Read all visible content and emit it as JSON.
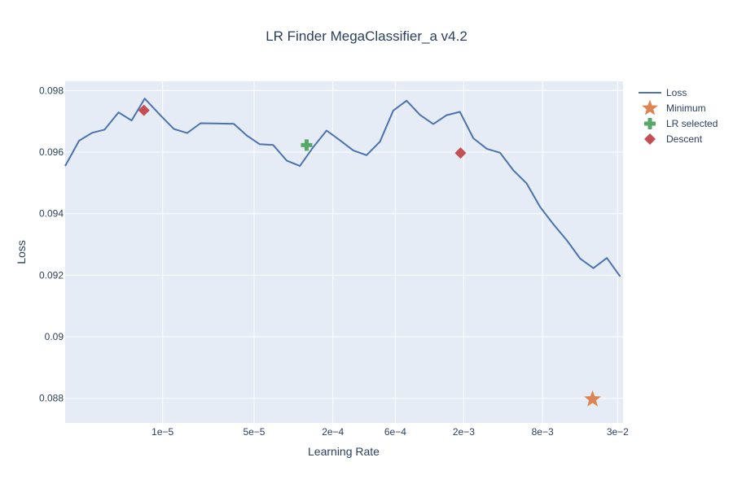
{
  "chart_data": {
    "type": "line",
    "title": "LR Finder MegaClassifier_a v4.2",
    "xlabel": "Learning Rate",
    "ylabel": "Loss",
    "x_scale": "log",
    "xlim": [
      1.8e-06,
      0.033
    ],
    "ylim": [
      0.0872,
      0.0983
    ],
    "x_ticks": [
      {
        "value": 1e-05,
        "label": "1e−5"
      },
      {
        "value": 5e-05,
        "label": "5e−5"
      },
      {
        "value": 0.0002,
        "label": "2e−4"
      },
      {
        "value": 0.0006,
        "label": "6e−4"
      },
      {
        "value": 0.002,
        "label": "2e−3"
      },
      {
        "value": 0.008,
        "label": "8e−3"
      },
      {
        "value": 0.03,
        "label": "3e−2"
      }
    ],
    "y_ticks": [
      {
        "value": 0.088,
        "label": "0.088"
      },
      {
        "value": 0.09,
        "label": "0.09"
      },
      {
        "value": 0.092,
        "label": "0.092"
      },
      {
        "value": 0.094,
        "label": "0.094"
      },
      {
        "value": 0.096,
        "label": "0.096"
      },
      {
        "value": 0.098,
        "label": "0.098"
      }
    ],
    "grid": true,
    "legend_position": "top-right",
    "colors": {
      "plot_bg": "#e5ecf6",
      "grid": "#ffffff",
      "loss": "#4c72b0",
      "minimum": "#dd8452",
      "lr_selected": "#55a868",
      "descent": "#c44e52"
    },
    "series": [
      {
        "name": "Loss",
        "kind": "line",
        "x": [
          1.8e-06,
          2.3e-06,
          2.9e-06,
          3.6e-06,
          4.6e-06,
          5.8e-06,
          7.3e-06,
          9.8e-06,
          1.22e-05,
          1.54e-05,
          1.95e-05,
          2.47e-05,
          3.5e-05,
          4.4e-05,
          5.5e-05,
          7e-05,
          8.9e-05,
          0.000112,
          0.000142,
          0.000179,
          0.000227,
          0.000287,
          0.000362,
          0.000458,
          0.000579,
          0.000732,
          0.000926,
          0.00117,
          0.00148,
          0.00187,
          0.00237,
          0.003,
          0.00379,
          0.00479,
          0.00606,
          0.00766,
          0.0097,
          0.0123,
          0.0155,
          0.0196,
          0.0248,
          0.0314
        ],
        "y": [
          0.09555,
          0.09637,
          0.09663,
          0.09673,
          0.09729,
          0.09703,
          0.09774,
          0.09716,
          0.09675,
          0.09662,
          0.09694,
          0.09693,
          0.09692,
          0.09654,
          0.09626,
          0.09623,
          0.09572,
          0.09555,
          0.09617,
          0.0967,
          0.09638,
          0.09605,
          0.0959,
          0.09634,
          0.09735,
          0.09767,
          0.09721,
          0.09691,
          0.0972,
          0.09731,
          0.09645,
          0.09611,
          0.09598,
          0.09541,
          0.09498,
          0.09422,
          0.09365,
          0.09313,
          0.09254,
          0.09223,
          0.09256,
          0.09196
        ]
      },
      {
        "name": "Minimum",
        "kind": "marker",
        "symbol": "star",
        "x": [
          0.0193
        ],
        "y": [
          0.08797
        ]
      },
      {
        "name": "LR selected",
        "kind": "marker",
        "symbol": "cross",
        "x": [
          0.000126
        ],
        "y": [
          0.09623
        ]
      },
      {
        "name": "Descent",
        "kind": "marker",
        "symbol": "diamond",
        "x": [
          7.2e-06,
          0.00189
        ],
        "y": [
          0.09736,
          0.09597
        ]
      }
    ]
  }
}
